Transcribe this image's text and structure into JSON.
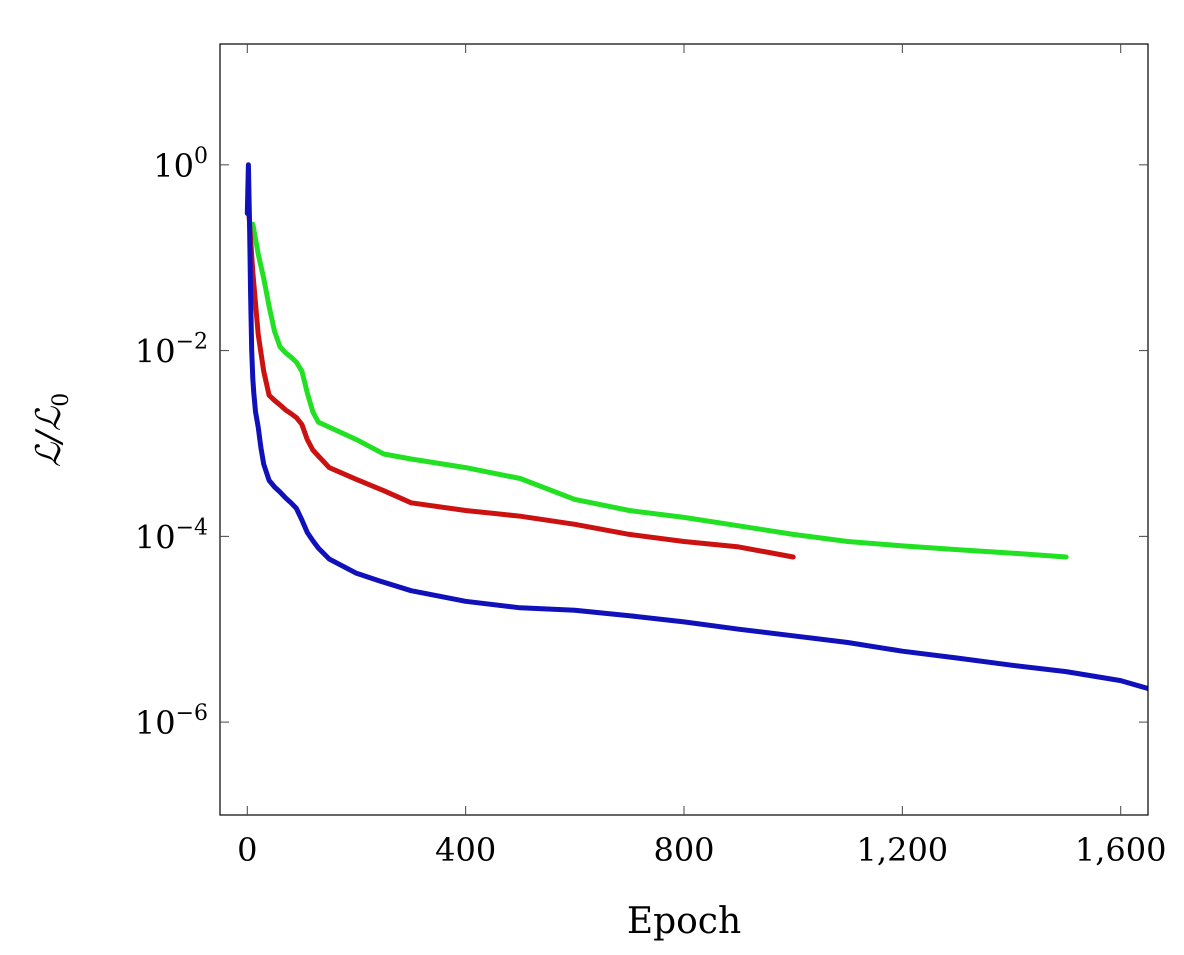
{
  "chart_data": {
    "type": "line",
    "xlabel": "Epoch",
    "ylabel": "ℒ/ℒ",
    "ylabel_sub": "0",
    "yscale": "log",
    "xlim": [
      -50,
      1650
    ],
    "ylim": [
      1e-07,
      20
    ],
    "grid": false,
    "x_ticks": [
      {
        "value": 0,
        "label": "0"
      },
      {
        "value": 400,
        "label": "400"
      },
      {
        "value": 800,
        "label": "800"
      },
      {
        "value": 1200,
        "label": "1,200"
      },
      {
        "value": 1600,
        "label": "1,600"
      }
    ],
    "y_ticks": [
      {
        "value": 1,
        "base": "10",
        "exp": "0"
      },
      {
        "value": 0.01,
        "base": "10",
        "exp": "−2"
      },
      {
        "value": 0.0001,
        "base": "10",
        "exp": "−4"
      },
      {
        "value": 1e-06,
        "base": "10",
        "exp": "−6"
      }
    ],
    "series": [
      {
        "color": "#22e022",
        "x": [
          10,
          20,
          30,
          40,
          50,
          60,
          70,
          80,
          90,
          100,
          110,
          120,
          130,
          150,
          200,
          250,
          300,
          400,
          500,
          600,
          700,
          800,
          900,
          1000,
          1100,
          1200,
          1300,
          1400,
          1500
        ],
        "y": [
          0.23,
          0.11,
          0.06,
          0.03,
          0.016,
          0.011,
          0.0095,
          0.0085,
          0.0075,
          0.006,
          0.0035,
          0.0022,
          0.0017,
          0.0015,
          0.0011,
          0.00077,
          0.00068,
          0.00055,
          0.00042,
          0.00025,
          0.00019,
          0.00016,
          0.00013,
          0.000105,
          8.8e-05,
          7.9e-05,
          7.2e-05,
          6.6e-05,
          6e-05
        ]
      },
      {
        "color": "#cc1111",
        "x": [
          3,
          10,
          20,
          30,
          40,
          50,
          60,
          70,
          80,
          90,
          100,
          110,
          120,
          150,
          200,
          250,
          300,
          400,
          500,
          600,
          700,
          800,
          900,
          1000
        ],
        "y": [
          0.3,
          0.07,
          0.015,
          0.006,
          0.0033,
          0.0029,
          0.0026,
          0.0023,
          0.0021,
          0.0019,
          0.0016,
          0.0011,
          0.00085,
          0.00055,
          0.00041,
          0.00031,
          0.00023,
          0.00019,
          0.000165,
          0.000135,
          0.000105,
          8.8e-05,
          7.7e-05,
          6e-05
        ]
      },
      {
        "color": "#1111bb",
        "x": [
          0,
          2,
          4,
          6,
          8,
          10,
          12,
          15,
          20,
          25,
          30,
          40,
          50,
          60,
          70,
          80,
          90,
          100,
          110,
          120,
          130,
          150,
          200,
          250,
          300,
          400,
          500,
          600,
          700,
          800,
          900,
          1000,
          1100,
          1200,
          1300,
          1400,
          1500,
          1600,
          1650
        ],
        "y": [
          0.3,
          1.0,
          0.25,
          0.04,
          0.01,
          0.005,
          0.0035,
          0.0022,
          0.0015,
          0.0009,
          0.0006,
          0.0004,
          0.00034,
          0.0003,
          0.00026,
          0.00023,
          0.0002,
          0.00015,
          0.00011,
          9e-05,
          7.5e-05,
          5.7e-05,
          4e-05,
          3.2e-05,
          2.6e-05,
          2e-05,
          1.7e-05,
          1.6e-05,
          1.4e-05,
          1.2e-05,
          1e-05,
          8.5e-06,
          7.2e-06,
          5.8e-06,
          4.9e-06,
          4.1e-06,
          3.5e-06,
          2.8e-06,
          2.3e-06
        ]
      }
    ]
  }
}
